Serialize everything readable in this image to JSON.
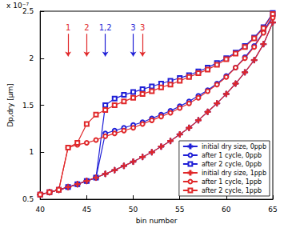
{
  "chart_data": {
    "type": "line",
    "ylabel": "Dp,dry [μm]",
    "xlabel": "bin number",
    "y_multiplier": "x 10⁻⁷",
    "x": [
      40,
      41,
      42,
      43,
      44,
      45,
      46,
      47,
      48,
      49,
      50,
      51,
      52,
      53,
      54,
      55,
      56,
      57,
      58,
      59,
      60,
      61,
      62,
      63,
      64,
      65
    ],
    "xlim": [
      40,
      65
    ],
    "xticks": [
      40,
      45,
      50,
      55,
      60,
      65
    ],
    "ylim": [
      0.5,
      2.5
    ],
    "yticks": [
      0.5,
      1,
      1.5,
      2,
      2.5
    ],
    "grid": false,
    "legend": "lower right",
    "series": [
      {
        "name": "initial dry size, 0ppb",
        "color": "#1f1fd6",
        "marker": "plus",
        "values": [
          0.55,
          0.575,
          0.6,
          0.63,
          0.66,
          0.695,
          0.73,
          0.77,
          0.81,
          0.855,
          0.9,
          0.95,
          1.0,
          1.06,
          1.12,
          1.19,
          1.26,
          1.34,
          1.43,
          1.52,
          1.62,
          1.73,
          1.85,
          1.98,
          2.15,
          2.38
        ]
      },
      {
        "name": "after 1 cycle, 0ppb",
        "color": "#1f1fd6",
        "marker": "circle",
        "values": [
          0.55,
          0.575,
          0.6,
          0.63,
          0.66,
          0.695,
          0.73,
          1.2,
          1.23,
          1.26,
          1.29,
          1.32,
          1.36,
          1.4,
          1.44,
          1.49,
          1.54,
          1.6,
          1.66,
          1.73,
          1.81,
          1.9,
          2.01,
          2.13,
          2.28,
          2.45
        ]
      },
      {
        "name": "after 2 cycle, 0ppb",
        "color": "#1f1fd6",
        "marker": "square",
        "values": [
          0.55,
          0.575,
          0.6,
          0.63,
          0.66,
          0.695,
          0.73,
          1.5,
          1.57,
          1.61,
          1.64,
          1.67,
          1.7,
          1.73,
          1.76,
          1.79,
          1.82,
          1.86,
          1.9,
          1.95,
          2.0,
          2.06,
          2.13,
          2.22,
          2.33,
          2.48
        ]
      },
      {
        "name": "initial dry size, 1ppb",
        "color": "#e0282a",
        "marker": "plus",
        "values": [
          0.55,
          0.575,
          0.6,
          0.63,
          0.66,
          0.695,
          0.73,
          0.77,
          0.81,
          0.855,
          0.9,
          0.95,
          1.0,
          1.06,
          1.12,
          1.19,
          1.26,
          1.34,
          1.43,
          1.52,
          1.62,
          1.73,
          1.85,
          1.98,
          2.15,
          2.38
        ]
      },
      {
        "name": "after 1 cycle, 1ppb",
        "color": "#e0282a",
        "marker": "circle",
        "values": [
          0.55,
          0.575,
          0.6,
          1.05,
          1.08,
          1.1,
          1.13,
          1.17,
          1.2,
          1.23,
          1.26,
          1.3,
          1.34,
          1.38,
          1.42,
          1.47,
          1.52,
          1.58,
          1.65,
          1.72,
          1.8,
          1.9,
          2.0,
          2.12,
          2.27,
          2.43
        ]
      },
      {
        "name": "after 2 cycle, 1ppb",
        "color": "#e0282a",
        "marker": "square",
        "values": [
          0.55,
          0.575,
          0.6,
          1.05,
          1.1,
          1.3,
          1.4,
          1.45,
          1.5,
          1.54,
          1.58,
          1.62,
          1.65,
          1.69,
          1.72,
          1.76,
          1.8,
          1.84,
          1.88,
          1.93,
          1.99,
          2.05,
          2.12,
          2.21,
          2.32,
          2.47
        ]
      }
    ],
    "annotations": [
      {
        "text": "1",
        "x": 43,
        "color": "#e0282a"
      },
      {
        "text": "2",
        "x": 45,
        "color": "#e0282a"
      },
      {
        "text": "1,2",
        "x": 47,
        "color": "#1f1fd6"
      },
      {
        "text": "3",
        "x": 50,
        "color": "#1f1fd6"
      },
      {
        "text": "3",
        "x": 51,
        "color": "#e0282a"
      }
    ]
  }
}
